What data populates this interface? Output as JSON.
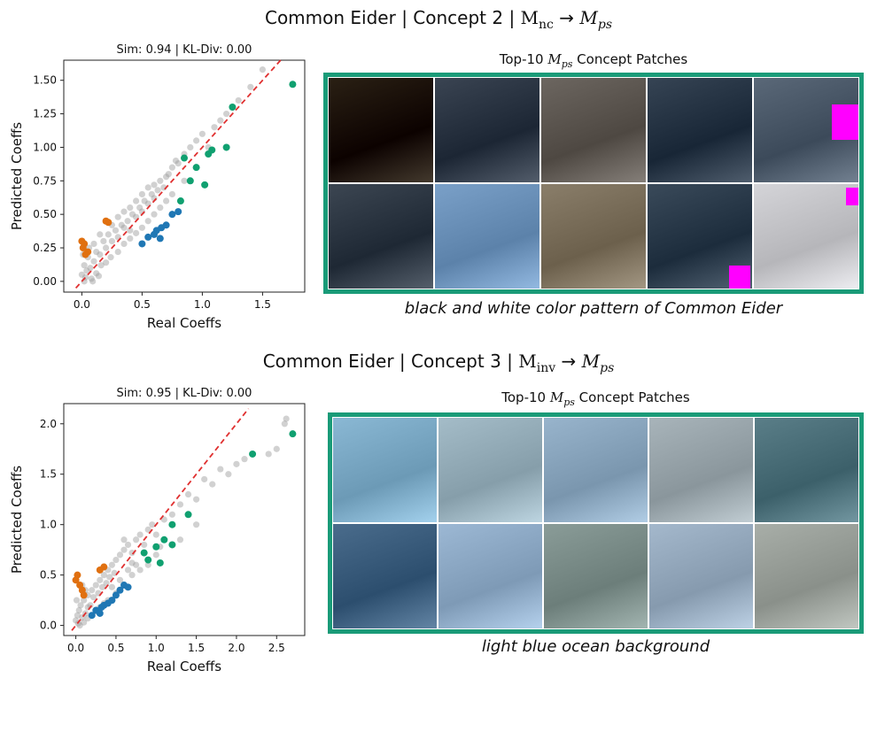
{
  "panels": [
    {
      "title_prefix": "Common Eider | Concept 2 | ",
      "title_from": "M",
      "title_from_sub": "nc",
      "title_arrow": " → ",
      "title_to": "M",
      "title_to_sub": "ps",
      "grid_title_prefix": "Top-10 ",
      "grid_title_var": "M",
      "grid_title_sub": "ps",
      "grid_title_suffix": " Concept Patches",
      "caption": "black and white color pattern of Common Eider",
      "tile_colors": [
        [
          "#2a2014",
          "#3a4452",
          "#6c6660",
          "#364454",
          "#5a6878"
        ],
        [
          "#3c4652",
          "#7aa0c8",
          "#8a7e6a",
          "#3a4a5a",
          "#d4d4d8"
        ]
      ]
    },
    {
      "title_prefix": "Common Eider | Concept 3 | ",
      "title_from": "M",
      "title_from_sub": "inv",
      "title_arrow": " → ",
      "title_to": "M",
      "title_to_sub": "ps",
      "grid_title_prefix": "Top-10 ",
      "grid_title_var": "M",
      "grid_title_sub": "ps",
      "grid_title_suffix": " Concept Patches",
      "caption": "light blue ocean background",
      "tile_colors": [
        [
          "#8ab8d4",
          "#a4bcc8",
          "#98b4cc",
          "#a8b4ba",
          "#5a7e88"
        ],
        [
          "#4a6c8c",
          "#9cb8d4",
          "#8a9c98",
          "#a4b8cc",
          "#a8aea8"
        ]
      ]
    }
  ],
  "chart_data": [
    {
      "type": "scatter",
      "title": "Sim: 0.94 | KL-Div: 0.00",
      "xlabel": "Real Coeffs",
      "ylabel": "Predicted Coeffs",
      "xlim": [
        -0.15,
        1.85
      ],
      "ylim": [
        -0.08,
        1.65
      ],
      "xticks": [
        0.0,
        0.5,
        1.0,
        1.5
      ],
      "xtick_labels": [
        "0.0",
        "0.5",
        "1.0",
        "1.5"
      ],
      "yticks": [
        0.0,
        0.25,
        0.5,
        0.75,
        1.0,
        1.25,
        1.5
      ],
      "ytick_labels": [
        "0.00",
        "0.25",
        "0.50",
        "0.75",
        "1.00",
        "1.25",
        "1.50"
      ],
      "diagonal": [
        [
          -0.05,
          -0.05
        ],
        [
          1.65,
          1.65
        ]
      ],
      "series": [
        {
          "color": "#999999",
          "points": [
            [
              0.0,
              0.05
            ],
            [
              0.02,
              0.12
            ],
            [
              0.04,
              0.08
            ],
            [
              0.05,
              0.18
            ],
            [
              0.07,
              0.1
            ],
            [
              0.1,
              0.15
            ],
            [
              0.12,
              0.22
            ],
            [
              0.15,
              0.2
            ],
            [
              0.18,
              0.3
            ],
            [
              0.2,
              0.25
            ],
            [
              0.22,
              0.35
            ],
            [
              0.25,
              0.3
            ],
            [
              0.28,
              0.38
            ],
            [
              0.3,
              0.33
            ],
            [
              0.33,
              0.42
            ],
            [
              0.35,
              0.4
            ],
            [
              0.38,
              0.45
            ],
            [
              0.4,
              0.38
            ],
            [
              0.42,
              0.5
            ],
            [
              0.45,
              0.48
            ],
            [
              0.48,
              0.55
            ],
            [
              0.5,
              0.52
            ],
            [
              0.52,
              0.6
            ],
            [
              0.55,
              0.58
            ],
            [
              0.58,
              0.65
            ],
            [
              0.6,
              0.62
            ],
            [
              0.63,
              0.68
            ],
            [
              0.65,
              0.75
            ],
            [
              0.68,
              0.7
            ],
            [
              0.7,
              0.78
            ],
            [
              0.72,
              0.8
            ],
            [
              0.75,
              0.85
            ],
            [
              0.78,
              0.9
            ],
            [
              0.8,
              0.88
            ],
            [
              0.85,
              0.95
            ],
            [
              0.9,
              1.0
            ],
            [
              0.95,
              1.05
            ],
            [
              1.0,
              1.1
            ],
            [
              1.05,
              1.0
            ],
            [
              1.1,
              1.15
            ],
            [
              1.15,
              1.2
            ],
            [
              1.2,
              1.25
            ],
            [
              1.3,
              1.35
            ],
            [
              1.4,
              1.45
            ],
            [
              1.5,
              1.58
            ],
            [
              0.08,
              0.02
            ],
            [
              0.12,
              0.06
            ],
            [
              0.16,
              0.12
            ],
            [
              0.2,
              0.14
            ],
            [
              0.24,
              0.18
            ],
            [
              0.3,
              0.22
            ],
            [
              0.35,
              0.28
            ],
            [
              0.4,
              0.32
            ],
            [
              0.45,
              0.36
            ],
            [
              0.5,
              0.4
            ],
            [
              0.55,
              0.45
            ],
            [
              0.6,
              0.5
            ],
            [
              0.25,
              0.42
            ],
            [
              0.3,
              0.48
            ],
            [
              0.35,
              0.52
            ],
            [
              0.15,
              0.35
            ],
            [
              0.1,
              0.28
            ],
            [
              0.55,
              0.7
            ],
            [
              0.45,
              0.6
            ],
            [
              0.4,
              0.55
            ],
            [
              0.6,
              0.72
            ],
            [
              0.7,
              0.6
            ],
            [
              0.75,
              0.65
            ],
            [
              0.85,
              0.75
            ],
            [
              0.02,
              0.0
            ],
            [
              0.03,
              0.03
            ],
            [
              0.01,
              0.2
            ],
            [
              0.06,
              0.25
            ],
            [
              0.09,
              0.0
            ],
            [
              0.14,
              0.04
            ],
            [
              0.5,
              0.65
            ],
            [
              0.65,
              0.55
            ]
          ]
        },
        {
          "color": "#e07010",
          "points": [
            [
              0.0,
              0.3
            ],
            [
              0.01,
              0.25
            ],
            [
              0.02,
              0.28
            ],
            [
              0.03,
              0.2
            ],
            [
              0.05,
              0.22
            ],
            [
              0.2,
              0.45
            ],
            [
              0.22,
              0.44
            ]
          ]
        },
        {
          "color": "#1f77b4",
          "points": [
            [
              0.5,
              0.28
            ],
            [
              0.55,
              0.33
            ],
            [
              0.6,
              0.35
            ],
            [
              0.62,
              0.38
            ],
            [
              0.66,
              0.4
            ],
            [
              0.7,
              0.42
            ],
            [
              0.75,
              0.5
            ],
            [
              0.8,
              0.52
            ],
            [
              0.65,
              0.32
            ]
          ]
        },
        {
          "color": "#10a070",
          "points": [
            [
              0.82,
              0.6
            ],
            [
              0.9,
              0.75
            ],
            [
              0.95,
              0.85
            ],
            [
              1.02,
              0.72
            ],
            [
              1.05,
              0.95
            ],
            [
              1.08,
              0.98
            ],
            [
              1.2,
              1.0
            ],
            [
              1.25,
              1.3
            ],
            [
              1.75,
              1.47
            ],
            [
              0.85,
              0.92
            ]
          ]
        }
      ]
    },
    {
      "type": "scatter",
      "title": "Sim: 0.95 | KL-Div: 0.00",
      "xlabel": "Real Coeffs",
      "ylabel": "Predicted Coeffs",
      "xlim": [
        -0.15,
        2.85
      ],
      "ylim": [
        -0.1,
        2.2
      ],
      "xticks": [
        0.0,
        0.5,
        1.0,
        1.5,
        2.0,
        2.5
      ],
      "xtick_labels": [
        "0.0",
        "0.5",
        "1.0",
        "1.5",
        "2.0",
        "2.5"
      ],
      "yticks": [
        0.0,
        0.5,
        1.0,
        1.5,
        2.0
      ],
      "ytick_labels": [
        "0.0",
        "0.5",
        "1.0",
        "1.5",
        "2.0"
      ],
      "diagonal": [
        [
          -0.05,
          -0.05
        ],
        [
          2.15,
          2.15
        ]
      ],
      "series": [
        {
          "color": "#999999",
          "points": [
            [
              0.0,
              0.05
            ],
            [
              0.02,
              0.1
            ],
            [
              0.04,
              0.15
            ],
            [
              0.06,
              0.2
            ],
            [
              0.08,
              0.08
            ],
            [
              0.1,
              0.25
            ],
            [
              0.12,
              0.12
            ],
            [
              0.15,
              0.3
            ],
            [
              0.18,
              0.2
            ],
            [
              0.2,
              0.35
            ],
            [
              0.22,
              0.28
            ],
            [
              0.25,
              0.4
            ],
            [
              0.28,
              0.32
            ],
            [
              0.3,
              0.45
            ],
            [
              0.33,
              0.38
            ],
            [
              0.35,
              0.5
            ],
            [
              0.38,
              0.42
            ],
            [
              0.4,
              0.55
            ],
            [
              0.42,
              0.48
            ],
            [
              0.45,
              0.6
            ],
            [
              0.48,
              0.52
            ],
            [
              0.5,
              0.65
            ],
            [
              0.55,
              0.7
            ],
            [
              0.6,
              0.75
            ],
            [
              0.65,
              0.8
            ],
            [
              0.7,
              0.72
            ],
            [
              0.75,
              0.85
            ],
            [
              0.8,
              0.9
            ],
            [
              0.85,
              0.8
            ],
            [
              0.9,
              0.95
            ],
            [
              0.95,
              1.0
            ],
            [
              1.0,
              0.9
            ],
            [
              1.1,
              1.05
            ],
            [
              1.2,
              1.1
            ],
            [
              1.3,
              1.2
            ],
            [
              1.4,
              1.3
            ],
            [
              1.5,
              1.25
            ],
            [
              1.6,
              1.45
            ],
            [
              1.7,
              1.4
            ],
            [
              1.8,
              1.55
            ],
            [
              1.9,
              1.5
            ],
            [
              2.0,
              1.6
            ],
            [
              2.1,
              1.65
            ],
            [
              2.4,
              1.7
            ],
            [
              2.5,
              1.75
            ],
            [
              2.6,
              2.0
            ],
            [
              2.62,
              2.05
            ],
            [
              0.05,
              0.0
            ],
            [
              0.1,
              0.03
            ],
            [
              0.15,
              0.07
            ],
            [
              0.2,
              0.1
            ],
            [
              0.25,
              0.14
            ],
            [
              0.3,
              0.18
            ],
            [
              0.35,
              0.22
            ],
            [
              0.4,
              0.25
            ],
            [
              0.5,
              0.32
            ],
            [
              0.6,
              0.4
            ],
            [
              0.7,
              0.5
            ],
            [
              0.8,
              0.55
            ],
            [
              0.9,
              0.6
            ],
            [
              1.0,
              0.7
            ],
            [
              0.55,
              0.45
            ],
            [
              0.65,
              0.55
            ],
            [
              0.45,
              0.38
            ],
            [
              0.75,
              0.6
            ],
            [
              1.3,
              0.85
            ],
            [
              1.5,
              1.0
            ],
            [
              1.05,
              0.78
            ],
            [
              0.15,
              0.18
            ],
            [
              0.12,
              0.35
            ],
            [
              0.08,
              0.4
            ],
            [
              0.6,
              0.85
            ],
            [
              0.7,
              0.62
            ],
            [
              0.03,
              0.02
            ],
            [
              0.01,
              0.25
            ]
          ]
        },
        {
          "color": "#e07010",
          "points": [
            [
              0.0,
              0.45
            ],
            [
              0.02,
              0.5
            ],
            [
              0.05,
              0.4
            ],
            [
              0.08,
              0.35
            ],
            [
              0.1,
              0.3
            ],
            [
              0.35,
              0.58
            ],
            [
              0.3,
              0.55
            ]
          ]
        },
        {
          "color": "#1f77b4",
          "points": [
            [
              0.2,
              0.1
            ],
            [
              0.25,
              0.15
            ],
            [
              0.3,
              0.12
            ],
            [
              0.35,
              0.2
            ],
            [
              0.4,
              0.22
            ],
            [
              0.5,
              0.3
            ],
            [
              0.55,
              0.35
            ],
            [
              0.6,
              0.4
            ],
            [
              0.65,
              0.38
            ],
            [
              0.45,
              0.25
            ],
            [
              0.32,
              0.18
            ]
          ]
        },
        {
          "color": "#10a070",
          "points": [
            [
              0.9,
              0.65
            ],
            [
              1.0,
              0.78
            ],
            [
              1.05,
              0.62
            ],
            [
              1.1,
              0.85
            ],
            [
              1.2,
              0.8
            ],
            [
              1.2,
              1.0
            ],
            [
              1.4,
              1.1
            ],
            [
              0.85,
              0.72
            ],
            [
              2.2,
              1.7
            ],
            [
              2.7,
              1.9
            ]
          ]
        }
      ]
    }
  ]
}
